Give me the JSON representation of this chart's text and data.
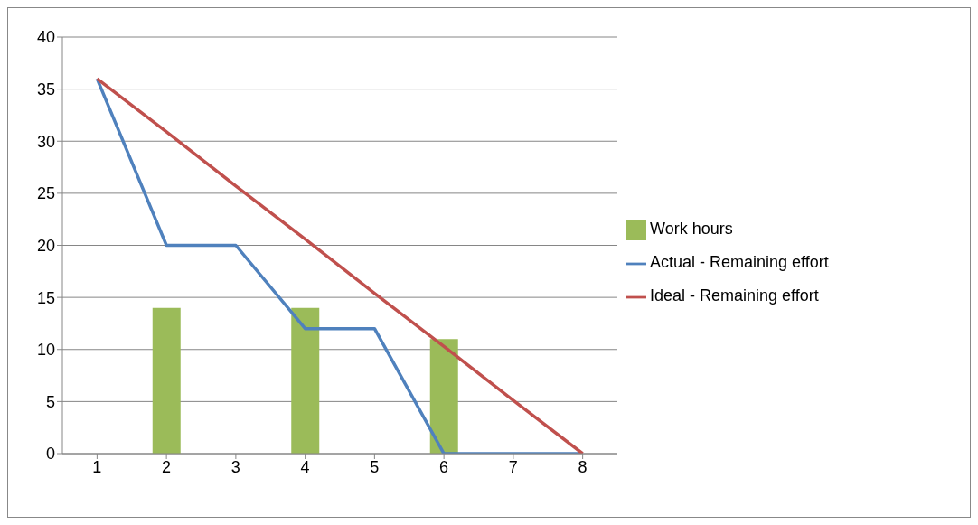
{
  "chart_data": {
    "type": "bar",
    "categories": [
      "1",
      "2",
      "3",
      "4",
      "5",
      "6",
      "7",
      "8"
    ],
    "series": [
      {
        "name": "Work hours",
        "color": "#9bbb59",
        "values": [
          null,
          14,
          null,
          14,
          null,
          11,
          null,
          null
        ]
      },
      {
        "name": "Actual - Remaining effort",
        "type": "line",
        "color": "#4f81bd",
        "values": [
          36,
          20,
          20,
          12,
          12,
          0,
          0,
          0
        ]
      },
      {
        "name": "Ideal - Remaining effort",
        "type": "line",
        "color": "#c0504d",
        "values": [
          36,
          30.9,
          25.7,
          20.6,
          15.4,
          10.3,
          5.1,
          0
        ]
      }
    ],
    "ylim": [
      0,
      40
    ],
    "yticks": [
      0,
      5,
      10,
      15,
      20,
      25,
      30,
      35,
      40
    ],
    "grid": "y",
    "legend": "right",
    "marker": "none",
    "line_style": "solid"
  }
}
